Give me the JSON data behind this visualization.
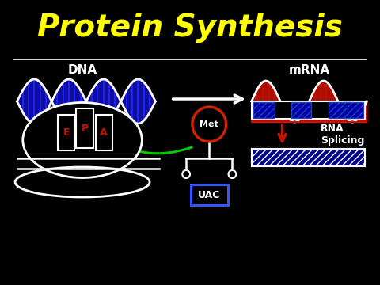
{
  "title": "Protein Synthesis",
  "title_color": "#FFFF00",
  "title_fontsize": 28,
  "bg_color": "#000000",
  "dna_label": "DNA",
  "mrna_label": "mRNA",
  "ribosome_labels": [
    "E",
    "P",
    "A"
  ],
  "met_label": "Met",
  "uac_label": "UAC",
  "rna_splicing_label": "RNA\nSplicing",
  "white": "#FFFFFF",
  "blue": "#1111CC",
  "red": "#CC2200",
  "green": "#00CC00",
  "yellow": "#FFFF00",
  "dark_red": "#880000"
}
